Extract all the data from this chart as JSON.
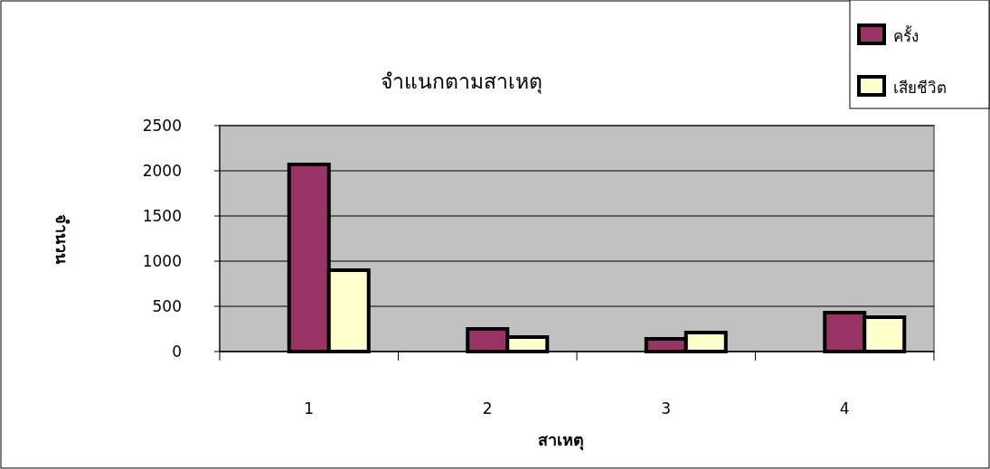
{
  "chart_data": {
    "type": "bar",
    "title": "จำแนกตามสาเหตุ",
    "xlabel": "สาเหตุ",
    "ylabel": "จำนวน",
    "categories": [
      "1",
      "2",
      "3",
      "4"
    ],
    "series": [
      {
        "color": "#9999ff",
        "values": [
          null,
          0,
          0,
          0
        ]
      },
      {
        "name": "ครั้ง",
        "color": "#993366",
        "values": [
          2070,
          250,
          140,
          430
        ]
      },
      {
        "name": "เสียชีวิต",
        "color": "#ffffcc",
        "values": [
          900,
          160,
          210,
          380
        ]
      }
    ],
    "ylim": [
      0,
      2500
    ],
    "yticks": [
      0,
      500,
      1000,
      1500,
      2000,
      2500
    ],
    "grid": "y",
    "legend": "top right"
  }
}
